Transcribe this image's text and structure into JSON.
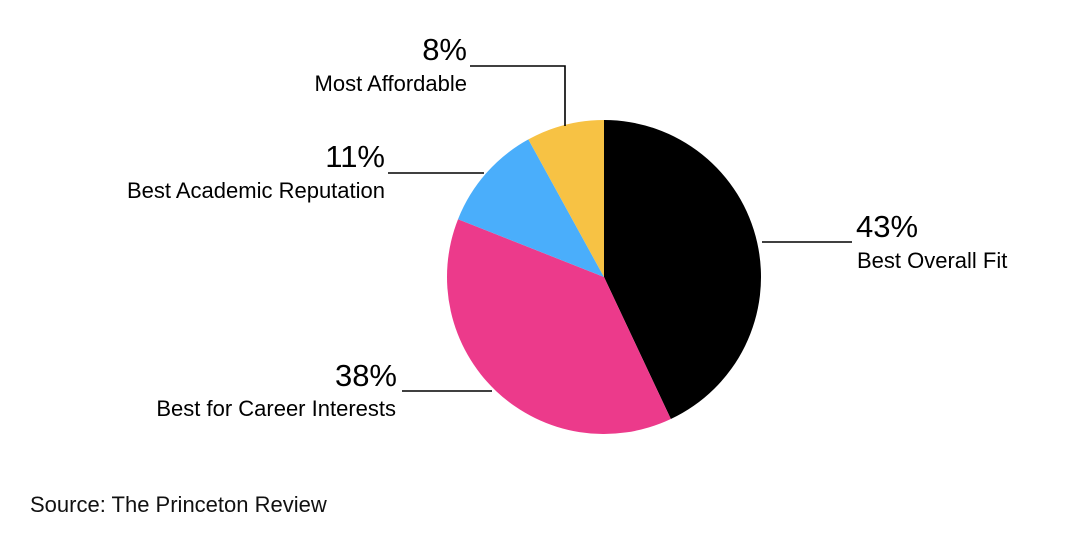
{
  "chart_data": {
    "type": "pie",
    "title": "",
    "slices": [
      {
        "label": "Best Overall Fit",
        "value": 43,
        "value_label": "43%",
        "color": "#000000"
      },
      {
        "label": "Best for Career Interests",
        "value": 38,
        "value_label": "38%",
        "color": "#EC3A8B"
      },
      {
        "label": "Best Academic Reputation",
        "value": 11,
        "value_label": "11%",
        "color": "#4AAEFB"
      },
      {
        "label": "Most Affordable",
        "value": 8,
        "value_label": "8%",
        "color": "#F7C244"
      }
    ],
    "start_angle": "12 o'clock",
    "direction": "clockwise",
    "legend": "none",
    "labels": "outside with leader lines"
  },
  "footer": {
    "source": "Source: The Princeton Review"
  }
}
